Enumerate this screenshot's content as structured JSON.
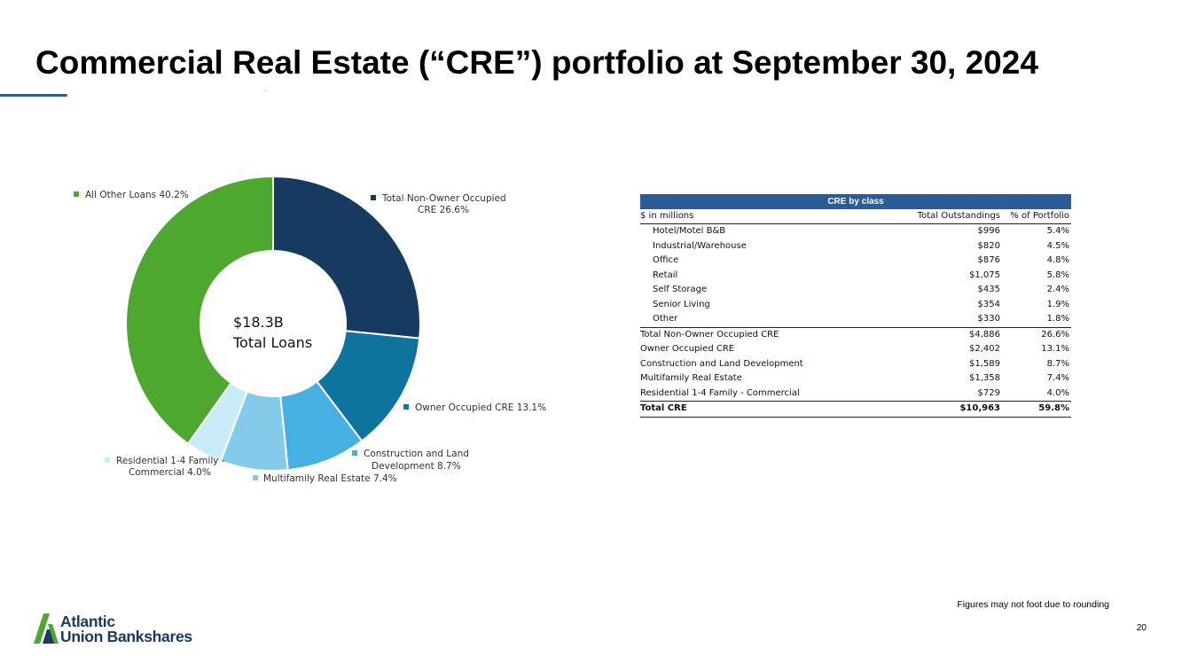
{
  "slide": {
    "title": "Commercial Real Estate (“CRE”) portfolio at September 30, 2024",
    "footnote": "Figures may not foot due to rounding",
    "page_number": "20",
    "logo": {
      "line1": "Atlantic",
      "line2": "Union Bankshares"
    }
  },
  "chart_data": {
    "type": "pie",
    "subtype": "donut",
    "center_label": [
      "$18.3B",
      "Total Loans"
    ],
    "slices": [
      {
        "label": "Total Non-Owner Occupied CRE",
        "value": 26.6,
        "color": "#173a60",
        "legend": [
          "Total Non-Owner Occupied",
          "CRE 26.6%"
        ]
      },
      {
        "label": "Owner Occupied CRE",
        "value": 13.1,
        "color": "#0e739d",
        "legend": [
          "Owner Occupied CRE 13.1%"
        ]
      },
      {
        "label": "Construction and Land Development",
        "value": 8.7,
        "color": "#45b0e1",
        "legend": [
          "Construction and Land",
          "Development 8.7%"
        ]
      },
      {
        "label": "Multifamily Real Estate",
        "value": 7.4,
        "color": "#84cbea",
        "legend": [
          "Multifamily Real Estate 7.4%"
        ]
      },
      {
        "label": "Residential 1-4 Family - Commercial",
        "value": 4.0,
        "color": "#c9ebf8",
        "legend": [
          "Residential 1-4 Family -",
          "Commercial 4.0%"
        ]
      },
      {
        "label": "All Other Loans",
        "value": 40.2,
        "color": "#4ea72e",
        "legend": [
          "All Other Loans 40.2%"
        ]
      }
    ]
  },
  "table": {
    "header": "CRE by class",
    "columns": [
      "$ in millions",
      "Total Outstandings",
      "% of Portfolio"
    ],
    "rows": [
      {
        "name": "Hotel/Motel B&B",
        "amount": "$996",
        "pct": "5.4%",
        "kind": "sub"
      },
      {
        "name": "Industrial/Warehouse",
        "amount": "$820",
        "pct": "4.5%",
        "kind": "sub"
      },
      {
        "name": "Office",
        "amount": "$876",
        "pct": "4.8%",
        "kind": "sub"
      },
      {
        "name": "Retail",
        "amount": "$1,075",
        "pct": "5.8%",
        "kind": "sub"
      },
      {
        "name": "Self Storage",
        "amount": "$435",
        "pct": "2.4%",
        "kind": "sub"
      },
      {
        "name": "Senior Living",
        "amount": "$354",
        "pct": "1.9%",
        "kind": "sub"
      },
      {
        "name": "Other",
        "amount": "$330",
        "pct": "1.8%",
        "kind": "sub"
      },
      {
        "name": "Total Non-Owner Occupied CRE",
        "amount": "$4,886",
        "pct": "26.6%",
        "kind": "topline"
      },
      {
        "name": "Owner Occupied CRE",
        "amount": "$2,402",
        "pct": "13.1%",
        "kind": ""
      },
      {
        "name": "Construction and Land Development",
        "amount": "$1,589",
        "pct": "8.7%",
        "kind": ""
      },
      {
        "name": "Multifamily Real Estate",
        "amount": "$1,358",
        "pct": "7.4%",
        "kind": ""
      },
      {
        "name": "Residential 1-4 Family - Commercial",
        "amount": "$729",
        "pct": "4.0%",
        "kind": ""
      },
      {
        "name": "Total CRE",
        "amount": "$10,963",
        "pct": "59.8%",
        "kind": "total"
      }
    ]
  }
}
